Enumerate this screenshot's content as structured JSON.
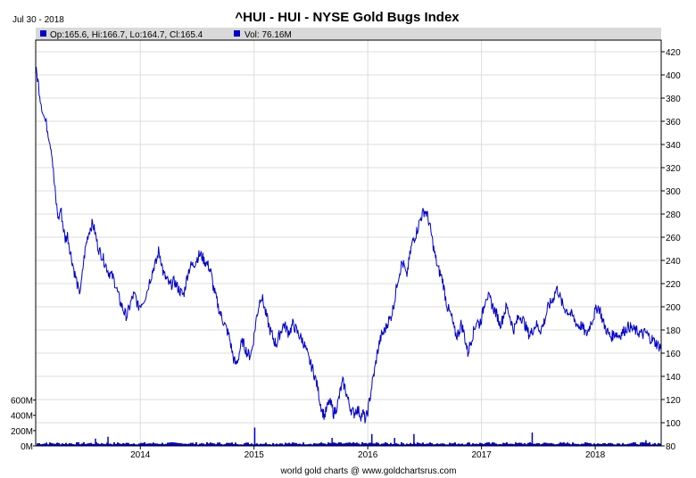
{
  "header": {
    "date": "Jul 30 - 2018",
    "title": "^HUI - HUI - NYSE Gold Bugs Index",
    "ohlc": "Op:165.6, Hi:166.7, Lo:164.7, Cl:165.4",
    "volume": "Vol: 76.16M"
  },
  "footer": {
    "credit": "world gold charts @ www.goldchartsrus.com"
  },
  "colors": {
    "series": "#0000cc",
    "grid": "#dcdcdc",
    "info_bar": "#d9d9d9"
  },
  "chart_data": {
    "type": "line",
    "title": "^HUI - HUI - NYSE Gold Bugs Index",
    "y_ticks": [
      "80",
      "100",
      "120",
      "140",
      "160",
      "180",
      "200",
      "220",
      "240",
      "260",
      "280",
      "300",
      "320",
      "340",
      "360",
      "380",
      "400",
      "420"
    ],
    "x_ticks": [
      "2014",
      "2015",
      "2016",
      "2017",
      "2018"
    ],
    "volume_ticks": [
      "0M",
      "200M",
      "400M",
      "600M"
    ],
    "ylim": [
      80,
      430
    ],
    "volume_ylim": [
      0,
      700
    ],
    "xlim": [
      2013.08,
      2018.58
    ],
    "grid": true,
    "series": [
      {
        "values": [
          [
            2013.08,
            405
          ],
          [
            2013.1,
            395
          ],
          [
            2013.12,
            380
          ],
          [
            2013.15,
            365
          ],
          [
            2013.18,
            355
          ],
          [
            2013.2,
            345
          ],
          [
            2013.22,
            335
          ],
          [
            2013.24,
            310
          ],
          [
            2013.26,
            290
          ],
          [
            2013.28,
            275
          ],
          [
            2013.3,
            285
          ],
          [
            2013.32,
            270
          ],
          [
            2013.34,
            258
          ],
          [
            2013.36,
            262
          ],
          [
            2013.38,
            250
          ],
          [
            2013.4,
            240
          ],
          [
            2013.42,
            230
          ],
          [
            2013.44,
            222
          ],
          [
            2013.46,
            212
          ],
          [
            2013.48,
            218
          ],
          [
            2013.5,
            238
          ],
          [
            2013.52,
            252
          ],
          [
            2013.54,
            262
          ],
          [
            2013.56,
            268
          ],
          [
            2013.58,
            272
          ],
          [
            2013.6,
            265
          ],
          [
            2013.62,
            255
          ],
          [
            2013.64,
            248
          ],
          [
            2013.66,
            245
          ],
          [
            2013.68,
            240
          ],
          [
            2013.7,
            235
          ],
          [
            2013.72,
            230
          ],
          [
            2013.74,
            228
          ],
          [
            2013.76,
            225
          ],
          [
            2013.78,
            220
          ],
          [
            2013.8,
            212
          ],
          [
            2013.82,
            205
          ],
          [
            2013.84,
            200
          ],
          [
            2013.86,
            195
          ],
          [
            2013.88,
            192
          ],
          [
            2013.9,
            198
          ],
          [
            2013.92,
            205
          ],
          [
            2013.94,
            210
          ],
          [
            2013.96,
            208
          ],
          [
            2013.98,
            200
          ],
          [
            2014.0,
            202
          ],
          [
            2014.02,
            205
          ],
          [
            2014.05,
            210
          ],
          [
            2014.08,
            222
          ],
          [
            2014.1,
            228
          ],
          [
            2014.12,
            235
          ],
          [
            2014.14,
            238
          ],
          [
            2014.16,
            248
          ],
          [
            2014.18,
            242
          ],
          [
            2014.2,
            230
          ],
          [
            2014.22,
            225
          ],
          [
            2014.24,
            222
          ],
          [
            2014.26,
            218
          ],
          [
            2014.28,
            220
          ],
          [
            2014.3,
            222
          ],
          [
            2014.32,
            218
          ],
          [
            2014.34,
            215
          ],
          [
            2014.36,
            212
          ],
          [
            2014.38,
            210
          ],
          [
            2014.4,
            220
          ],
          [
            2014.42,
            230
          ],
          [
            2014.44,
            235
          ],
          [
            2014.46,
            236
          ],
          [
            2014.48,
            238
          ],
          [
            2014.5,
            242
          ],
          [
            2014.52,
            245
          ],
          [
            2014.54,
            244
          ],
          [
            2014.56,
            240
          ],
          [
            2014.58,
            238
          ],
          [
            2014.6,
            235
          ],
          [
            2014.62,
            230
          ],
          [
            2014.64,
            218
          ],
          [
            2014.66,
            210
          ],
          [
            2014.68,
            202
          ],
          [
            2014.7,
            195
          ],
          [
            2014.72,
            190
          ],
          [
            2014.74,
            185
          ],
          [
            2014.76,
            180
          ],
          [
            2014.78,
            175
          ],
          [
            2014.8,
            165
          ],
          [
            2014.82,
            155
          ],
          [
            2014.84,
            150
          ],
          [
            2014.86,
            155
          ],
          [
            2014.88,
            165
          ],
          [
            2014.9,
            170
          ],
          [
            2014.92,
            165
          ],
          [
            2014.94,
            160
          ],
          [
            2014.96,
            158
          ],
          [
            2014.98,
            162
          ],
          [
            2015.0,
            175
          ],
          [
            2015.02,
            190
          ],
          [
            2015.04,
            200
          ],
          [
            2015.06,
            210
          ],
          [
            2015.08,
            205
          ],
          [
            2015.1,
            195
          ],
          [
            2015.12,
            188
          ],
          [
            2015.14,
            180
          ],
          [
            2015.16,
            175
          ],
          [
            2015.18,
            170
          ],
          [
            2015.2,
            168
          ],
          [
            2015.22,
            175
          ],
          [
            2015.24,
            180
          ],
          [
            2015.26,
            185
          ],
          [
            2015.28,
            182
          ],
          [
            2015.3,
            178
          ],
          [
            2015.32,
            180
          ],
          [
            2015.34,
            185
          ],
          [
            2015.36,
            182
          ],
          [
            2015.38,
            178
          ],
          [
            2015.4,
            175
          ],
          [
            2015.42,
            172
          ],
          [
            2015.44,
            168
          ],
          [
            2015.46,
            162
          ],
          [
            2015.48,
            155
          ],
          [
            2015.5,
            150
          ],
          [
            2015.52,
            145
          ],
          [
            2015.54,
            138
          ],
          [
            2015.56,
            130
          ],
          [
            2015.58,
            118
          ],
          [
            2015.6,
            110
          ],
          [
            2015.62,
            106
          ],
          [
            2015.64,
            112
          ],
          [
            2015.66,
            118
          ],
          [
            2015.68,
            115
          ],
          [
            2015.7,
            108
          ],
          [
            2015.72,
            112
          ],
          [
            2015.74,
            118
          ],
          [
            2015.76,
            128
          ],
          [
            2015.78,
            135
          ],
          [
            2015.8,
            130
          ],
          [
            2015.82,
            122
          ],
          [
            2015.84,
            115
          ],
          [
            2015.86,
            110
          ],
          [
            2015.88,
            108
          ],
          [
            2015.9,
            112
          ],
          [
            2015.92,
            110
          ],
          [
            2015.94,
            106
          ],
          [
            2015.96,
            108
          ],
          [
            2015.98,
            102
          ],
          [
            2016.0,
            110
          ],
          [
            2016.02,
            122
          ],
          [
            2016.04,
            135
          ],
          [
            2016.06,
            145
          ],
          [
            2016.08,
            158
          ],
          [
            2016.1,
            168
          ],
          [
            2016.12,
            175
          ],
          [
            2016.14,
            178
          ],
          [
            2016.16,
            182
          ],
          [
            2016.18,
            188
          ],
          [
            2016.2,
            190
          ],
          [
            2016.22,
            198
          ],
          [
            2016.24,
            208
          ],
          [
            2016.26,
            222
          ],
          [
            2016.28,
            230
          ],
          [
            2016.3,
            238
          ],
          [
            2016.32,
            235
          ],
          [
            2016.34,
            225
          ],
          [
            2016.36,
            238
          ],
          [
            2016.38,
            250
          ],
          [
            2016.4,
            258
          ],
          [
            2016.42,
            262
          ],
          [
            2016.44,
            268
          ],
          [
            2016.46,
            275
          ],
          [
            2016.48,
            280
          ],
          [
            2016.5,
            283
          ],
          [
            2016.52,
            280
          ],
          [
            2016.54,
            272
          ],
          [
            2016.56,
            262
          ],
          [
            2016.58,
            250
          ],
          [
            2016.6,
            240
          ],
          [
            2016.62,
            232
          ],
          [
            2016.64,
            228
          ],
          [
            2016.66,
            222
          ],
          [
            2016.68,
            210
          ],
          [
            2016.7,
            200
          ],
          [
            2016.72,
            195
          ],
          [
            2016.74,
            190
          ],
          [
            2016.76,
            180
          ],
          [
            2016.78,
            175
          ],
          [
            2016.8,
            178
          ],
          [
            2016.82,
            185
          ],
          [
            2016.84,
            180
          ],
          [
            2016.86,
            170
          ],
          [
            2016.88,
            160
          ],
          [
            2016.9,
            168
          ],
          [
            2016.92,
            175
          ],
          [
            2016.94,
            182
          ],
          [
            2016.96,
            188
          ],
          [
            2016.98,
            185
          ],
          [
            2017.0,
            190
          ],
          [
            2017.02,
            200
          ],
          [
            2017.04,
            210
          ],
          [
            2017.06,
            208
          ],
          [
            2017.08,
            205
          ],
          [
            2017.1,
            200
          ],
          [
            2017.12,
            196
          ],
          [
            2017.14,
            192
          ],
          [
            2017.16,
            185
          ],
          [
            2017.18,
            188
          ],
          [
            2017.2,
            195
          ],
          [
            2017.22,
            200
          ],
          [
            2017.24,
            195
          ],
          [
            2017.26,
            188
          ],
          [
            2017.28,
            180
          ],
          [
            2017.3,
            184
          ],
          [
            2017.32,
            190
          ],
          [
            2017.34,
            192
          ],
          [
            2017.36,
            190
          ],
          [
            2017.38,
            185
          ],
          [
            2017.4,
            180
          ],
          [
            2017.42,
            176
          ],
          [
            2017.44,
            178
          ],
          [
            2017.46,
            182
          ],
          [
            2017.48,
            185
          ],
          [
            2017.5,
            182
          ],
          [
            2017.52,
            180
          ],
          [
            2017.54,
            184
          ],
          [
            2017.56,
            190
          ],
          [
            2017.58,
            198
          ],
          [
            2017.6,
            202
          ],
          [
            2017.62,
            205
          ],
          [
            2017.64,
            210
          ],
          [
            2017.66,
            216
          ],
          [
            2017.68,
            212
          ],
          [
            2017.7,
            205
          ],
          [
            2017.72,
            200
          ],
          [
            2017.74,
            198
          ],
          [
            2017.76,
            196
          ],
          [
            2017.78,
            194
          ],
          [
            2017.8,
            192
          ],
          [
            2017.82,
            188
          ],
          [
            2017.84,
            185
          ],
          [
            2017.86,
            183
          ],
          [
            2017.88,
            184
          ],
          [
            2017.9,
            180
          ],
          [
            2017.92,
            176
          ],
          [
            2017.94,
            180
          ],
          [
            2017.96,
            186
          ],
          [
            2017.98,
            190
          ],
          [
            2018.0,
            196
          ],
          [
            2018.02,
            200
          ],
          [
            2018.04,
            198
          ],
          [
            2018.06,
            190
          ],
          [
            2018.08,
            184
          ],
          [
            2018.1,
            180
          ],
          [
            2018.12,
            176
          ],
          [
            2018.14,
            174
          ],
          [
            2018.16,
            176
          ],
          [
            2018.18,
            178
          ],
          [
            2018.2,
            175
          ],
          [
            2018.22,
            176
          ],
          [
            2018.24,
            178
          ],
          [
            2018.26,
            180
          ],
          [
            2018.28,
            182
          ],
          [
            2018.3,
            183
          ],
          [
            2018.32,
            181
          ],
          [
            2018.34,
            180
          ],
          [
            2018.36,
            179
          ],
          [
            2018.38,
            178
          ],
          [
            2018.4,
            177
          ],
          [
            2018.42,
            176
          ],
          [
            2018.44,
            178
          ],
          [
            2018.46,
            176
          ],
          [
            2018.48,
            173
          ],
          [
            2018.5,
            172
          ],
          [
            2018.52,
            170
          ],
          [
            2018.54,
            168
          ],
          [
            2018.56,
            166
          ],
          [
            2018.58,
            165
          ]
        ]
      }
    ],
    "volume_spikes": [
      [
        2013.17,
        45
      ],
      [
        2013.6,
        95
      ],
      [
        2013.71,
        120
      ],
      [
        2014.36,
        35
      ],
      [
        2015.0,
        240
      ],
      [
        2015.68,
        105
      ],
      [
        2016.03,
        155
      ],
      [
        2016.23,
        105
      ],
      [
        2016.4,
        155
      ],
      [
        2016.88,
        45
      ],
      [
        2017.44,
        175
      ],
      [
        2018.44,
        75
      ]
    ]
  }
}
